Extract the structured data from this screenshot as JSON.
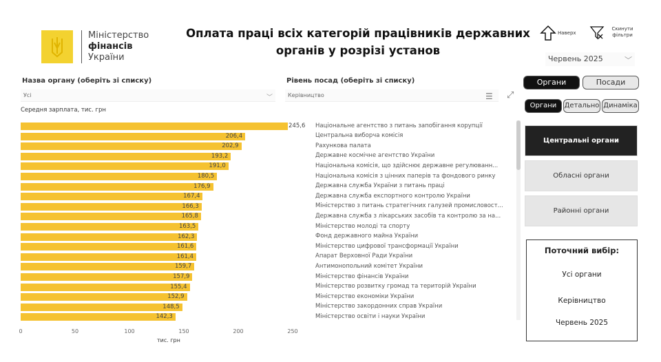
{
  "logo": {
    "line1": "Міністерство",
    "line2": "фінансів",
    "line3": "України"
  },
  "title": "Оплата праці всіх категорій працівників державних органів у розрізі установ",
  "toolbar": {
    "up_label": "Наверх",
    "reset_label": "Скинути фільтри"
  },
  "period_select": {
    "value": "Червень 2025"
  },
  "filters": {
    "org_label": "Назва органу (оберіть зі списку)",
    "org_value": "Усі",
    "level_label": "Рівень посад (оберіть зі списку)",
    "level_value": "Керівництво"
  },
  "view_toggle": [
    {
      "label": "Органи",
      "active": true
    },
    {
      "label": "Посади",
      "active": false
    }
  ],
  "sub_toggle": [
    {
      "label": "Органи",
      "active": true
    },
    {
      "label": "Детально",
      "active": false
    },
    {
      "label": "Динаміка",
      "active": false
    }
  ],
  "level_buttons": [
    {
      "label": "Центральні органи",
      "active": true
    },
    {
      "label": "Обласні органи",
      "active": false
    },
    {
      "label": "Районні органи",
      "active": false
    }
  ],
  "current_selection": {
    "title": "Поточний вибір:",
    "org": "Усі органи",
    "level": "Керівництво",
    "period": "Червень 2025"
  },
  "colors": {
    "bar": "#f5c231",
    "active": "#111111"
  },
  "chart_data": {
    "type": "bar",
    "orientation": "horizontal",
    "title": "Середня зарплата, тис. грн",
    "xlabel": "тис. грн",
    "xlim": [
      0,
      250
    ],
    "xticks": [
      0,
      50,
      100,
      150,
      200,
      250
    ],
    "categories": [
      "Національне агентство з питань запобігання корупції",
      "Центральна виборча комісія",
      "Рахункова палата",
      "Державне космічне агентство України",
      "Національна комісія, що здійснює державне регулюванн...",
      "Національна комісія з цінних паперів та фондового ринку",
      "Державна служба України з питань праці",
      "Державна служба експортного контролю України",
      "Міністерство з питань стратегічних галузей промисловост...",
      "Державна служба з лікарських засобів та контролю за на...",
      "Міністерство молоді та спорту",
      "Фонд державного майна України",
      "Міністерство цифрової трансформації України",
      "Апарат Верховної Ради України",
      "Антимонопольний комітет України",
      "Міністерство фінансів України",
      "Міністерство розвитку громад та територій України",
      "Міністерство економіки України",
      "Міністерство закордонних справ України",
      "Міністерство освіти і науки України"
    ],
    "values": [
      245.6,
      206.4,
      202.9,
      193.2,
      191.0,
      180.5,
      176.9,
      167.4,
      166.3,
      165.8,
      163.5,
      162.3,
      161.6,
      161.4,
      159.7,
      157.9,
      155.4,
      152.9,
      148.5,
      142.3
    ],
    "labels": [
      "245,6",
      "206,4",
      "202,9",
      "193,2",
      "191,0",
      "180,5",
      "176,9",
      "167,4",
      "166,3",
      "165,8",
      "163,5",
      "162,3",
      "161,6",
      "161,4",
      "159,7",
      "157,9",
      "155,4",
      "152,9",
      "148,5",
      "142,3"
    ]
  }
}
